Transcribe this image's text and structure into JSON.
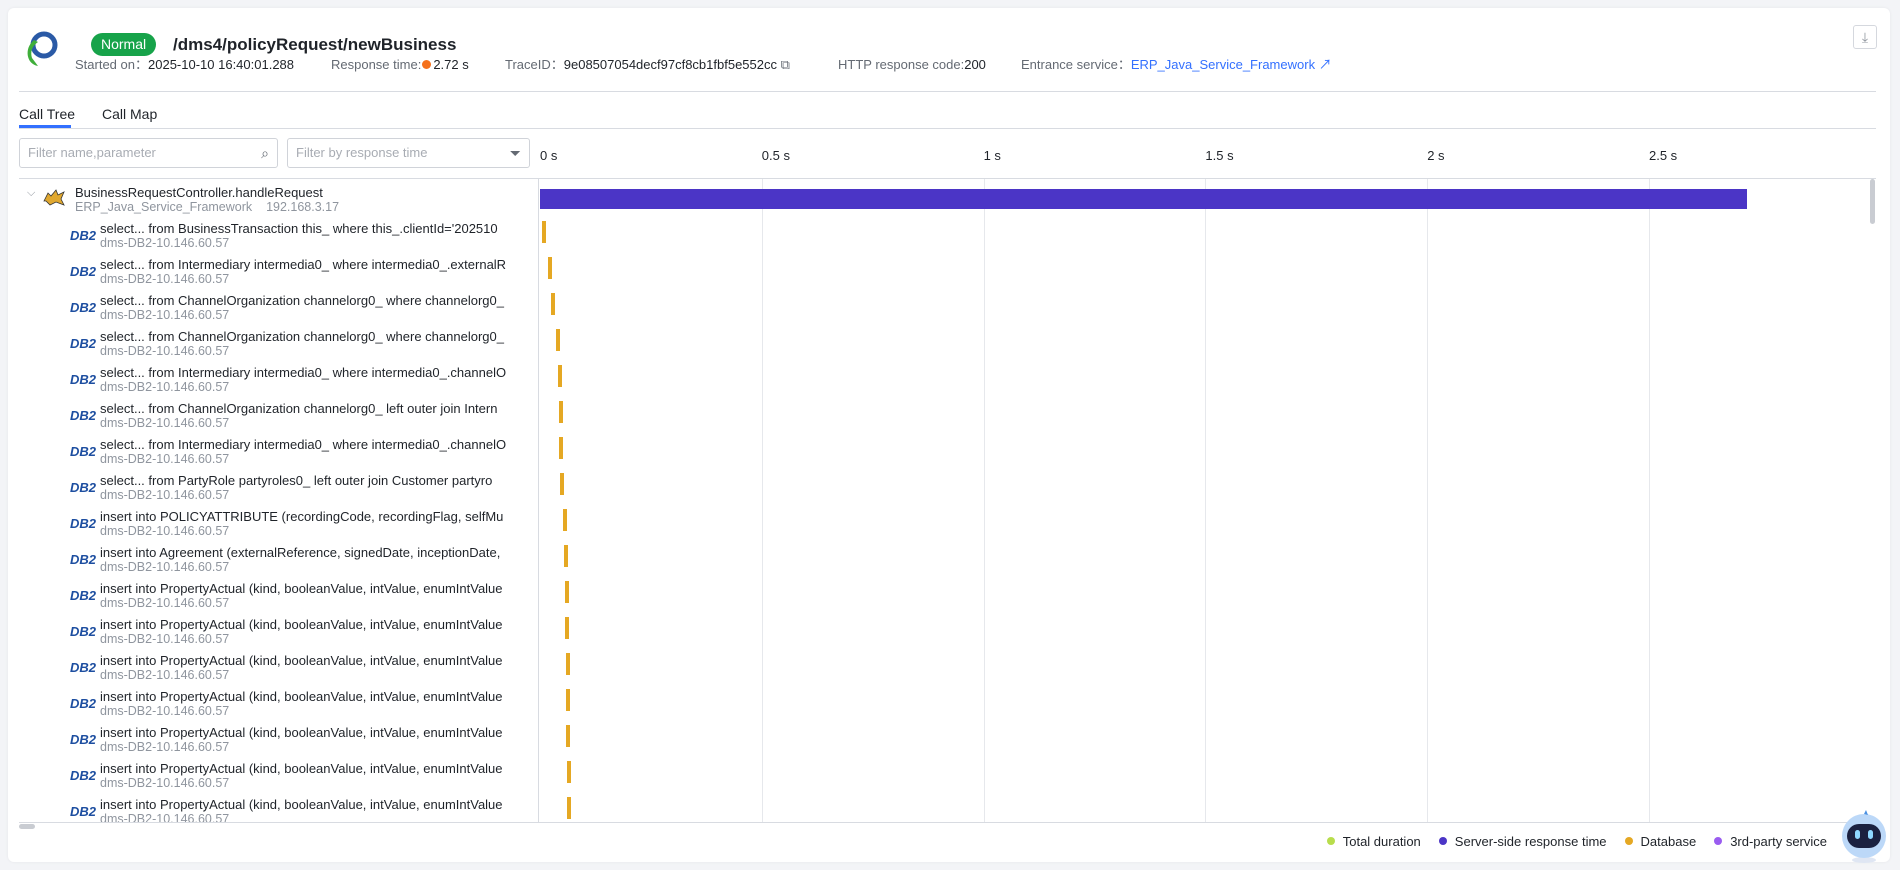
{
  "header": {
    "status": "Normal",
    "path": "/dms4/policyRequest/newBusiness",
    "started_label": "Started on：",
    "started_value": "2025-10-10 16:40:01.288",
    "response_label": "Response time:",
    "response_value": "2.72 s",
    "trace_label": "TraceID：",
    "trace_value": "9e08507054decf97cf8cb1fbf5e552cc",
    "http_label": "HTTP response code:",
    "http_value": "200",
    "entrance_label": "Entrance service：",
    "entrance_value": "ERP_Java_Service_Framework",
    "icons": {
      "copy": "copy-icon",
      "external": "external-link-icon",
      "download": "download-icon"
    }
  },
  "tabs": [
    {
      "label": "Call Tree",
      "active": true
    },
    {
      "label": "Call Map",
      "active": false
    }
  ],
  "filters": {
    "name_placeholder": "Filter name,parameter",
    "time_placeholder": "Filter by response time"
  },
  "axis": {
    "ticks": [
      "0 s",
      "0.5 s",
      "1 s",
      "1.5 s",
      "2 s",
      "2.5 s"
    ],
    "tick_values": [
      0,
      0.5,
      1,
      1.5,
      2,
      2.5
    ]
  },
  "colors": {
    "total": "#b8dd4c",
    "server": "#4b35c6",
    "database": "#e5a823",
    "third_party": "#9a5cf0"
  },
  "root": {
    "name": "BusinessRequestController.handleRequest",
    "service": "ERP_Java_Service_Framework",
    "ip": "192.168.3.17",
    "start_s": 0,
    "duration_s": 2.72,
    "icon": "tomcat-icon"
  },
  "db_icon_label": "DB2",
  "rows": [
    {
      "sql": "select... from BusinessTransaction this_ where this_.clientId='202510",
      "host": "dms-DB2-10.146.60.57",
      "start_s": 0.005
    },
    {
      "sql": "select... from Intermediary intermedia0_ where intermedia0_.externalR",
      "host": "dms-DB2-10.146.60.57",
      "start_s": 0.019
    },
    {
      "sql": "select... from ChannelOrganization channelorg0_ where channelorg0_",
      "host": "dms-DB2-10.146.60.57",
      "start_s": 0.025
    },
    {
      "sql": "select... from ChannelOrganization channelorg0_ where channelorg0_",
      "host": "dms-DB2-10.146.60.57",
      "start_s": 0.036
    },
    {
      "sql": "select... from Intermediary intermedia0_ where intermedia0_.channelO",
      "host": "dms-DB2-10.146.60.57",
      "start_s": 0.041
    },
    {
      "sql": "select... from ChannelOrganization channelorg0_ left outer join Intern",
      "host": "dms-DB2-10.146.60.57",
      "start_s": 0.042
    },
    {
      "sql": "select... from Intermediary intermedia0_ where intermedia0_.channelO",
      "host": "dms-DB2-10.146.60.57",
      "start_s": 0.042
    },
    {
      "sql": "select... from PartyRole partyroles0_ left outer join Customer partyro",
      "host": "dms-DB2-10.146.60.57",
      "start_s": 0.046
    },
    {
      "sql": "insert into POLICYATTRIBUTE (recordingCode, recordingFlag, selfMu",
      "host": "dms-DB2-10.146.60.57",
      "start_s": 0.052
    },
    {
      "sql": "insert into Agreement (externalReference, signedDate, inceptionDate,",
      "host": "dms-DB2-10.146.60.57",
      "start_s": 0.055
    },
    {
      "sql": "insert into PropertyActual (kind, booleanValue, intValue, enumIntValue",
      "host": "dms-DB2-10.146.60.57",
      "start_s": 0.057
    },
    {
      "sql": "insert into PropertyActual (kind, booleanValue, intValue, enumIntValue",
      "host": "dms-DB2-10.146.60.57",
      "start_s": 0.057
    },
    {
      "sql": "insert into PropertyActual (kind, booleanValue, intValue, enumIntValue",
      "host": "dms-DB2-10.146.60.57",
      "start_s": 0.058
    },
    {
      "sql": "insert into PropertyActual (kind, booleanValue, intValue, enumIntValue",
      "host": "dms-DB2-10.146.60.57",
      "start_s": 0.059
    },
    {
      "sql": "insert into PropertyActual (kind, booleanValue, intValue, enumIntValue",
      "host": "dms-DB2-10.146.60.57",
      "start_s": 0.059
    },
    {
      "sql": "insert into PropertyActual (kind, booleanValue, intValue, enumIntValue",
      "host": "dms-DB2-10.146.60.57",
      "start_s": 0.06
    },
    {
      "sql": "insert into PropertyActual (kind, booleanValue, intValue, enumIntValue",
      "host": "dms-DB2-10.146.60.57",
      "start_s": 0.061
    }
  ],
  "db_duration_s": 0.006,
  "legend": [
    {
      "label": "Total duration",
      "key": "total"
    },
    {
      "label": "Server-side response time",
      "key": "server"
    },
    {
      "label": "Database",
      "key": "database"
    },
    {
      "label": "3rd-party service",
      "key": "third_party"
    }
  ]
}
